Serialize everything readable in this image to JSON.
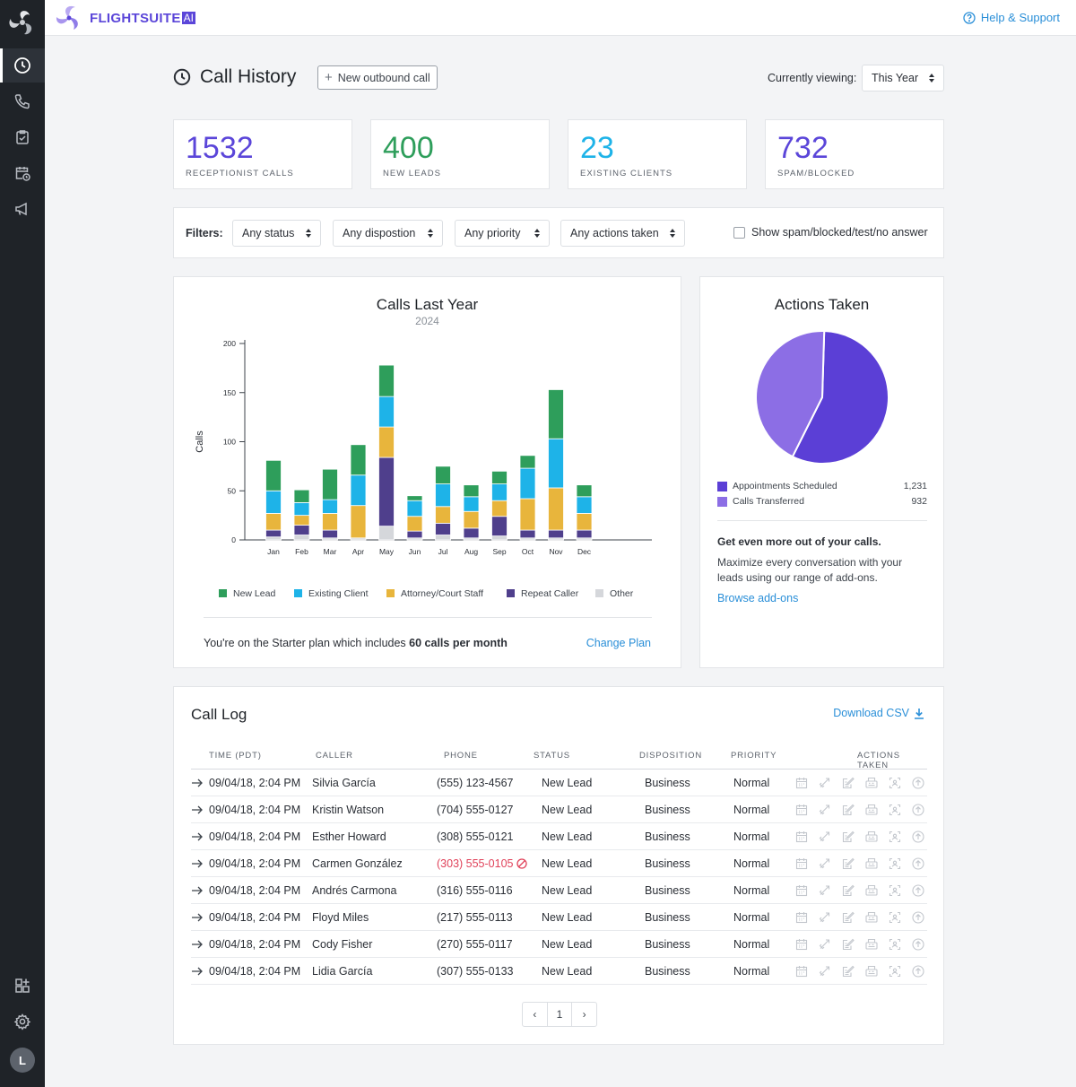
{
  "brand": {
    "name": "FLIGHTSUITE",
    "suffix": "AI"
  },
  "topbar": {
    "help_label": "Help & Support"
  },
  "sidebar": {
    "items": [
      {
        "name": "call-history",
        "icon": "clock-icon",
        "active": true
      },
      {
        "name": "calls",
        "icon": "phone-icon",
        "active": false
      },
      {
        "name": "tasks",
        "icon": "clipboard-check-icon",
        "active": false
      },
      {
        "name": "calendar",
        "icon": "calendar-clock-icon",
        "active": false
      },
      {
        "name": "campaigns",
        "icon": "megaphone-icon",
        "active": false
      }
    ],
    "bottom": [
      {
        "name": "add-ons",
        "icon": "grid-plus-icon"
      },
      {
        "name": "settings",
        "icon": "gear-icon"
      }
    ],
    "avatar_initial": "L"
  },
  "header": {
    "title": "Call History",
    "new_call_label": "New outbound call",
    "viewing_label": "Currently viewing:",
    "viewing_value": "This Year"
  },
  "stats": [
    {
      "value": "1532",
      "label": "RECEPTIONIST CALLS",
      "color": "#5b46d9"
    },
    {
      "value": "400",
      "label": "NEW LEADS",
      "color": "#2e9e5b"
    },
    {
      "value": "23",
      "label": "EXISTING CLIENTS",
      "color": "#1eb3e8"
    },
    {
      "value": "732",
      "label": "SPAM/BLOCKED",
      "color": "#5b46d9"
    }
  ],
  "filters": {
    "label": "Filters:",
    "status": "Any status",
    "disposition": "Any dispostion",
    "priority": "Any priority",
    "actions": "Any actions taken",
    "spam_label": "Show spam/blocked/test/no answer"
  },
  "chart_data": {
    "type": "bar",
    "stacked": true,
    "title": "Calls Last Year",
    "subtitle": "2024",
    "ylabel": "Calls",
    "ylim": [
      0,
      200
    ],
    "yticks": [
      0,
      50,
      100,
      150,
      200
    ],
    "categories": [
      "Jan",
      "Feb",
      "Mar",
      "Apr",
      "May",
      "Jun",
      "Jul",
      "Aug",
      "Sep",
      "Oct",
      "Nov",
      "Dec"
    ],
    "series": [
      {
        "name": "Other",
        "color": "#d5d7db",
        "values": [
          3,
          5,
          2,
          2,
          14,
          2,
          5,
          2,
          4,
          2,
          2,
          2
        ]
      },
      {
        "name": "Repeat Caller",
        "color": "#4f3f8c",
        "values": [
          7,
          10,
          8,
          0,
          70,
          7,
          12,
          10,
          20,
          8,
          8,
          8
        ]
      },
      {
        "name": "Attorney/Court Staff",
        "color": "#e8b53c",
        "values": [
          17,
          10,
          17,
          33,
          31,
          15,
          17,
          17,
          16,
          32,
          43,
          17
        ]
      },
      {
        "name": "Existing Client",
        "color": "#1eb3e8",
        "values": [
          23,
          13,
          14,
          31,
          31,
          16,
          23,
          15,
          17,
          31,
          50,
          17
        ]
      },
      {
        "name": "New Lead",
        "color": "#2e9e5b",
        "values": [
          31,
          13,
          31,
          31,
          32,
          5,
          18,
          12,
          13,
          13,
          50,
          12
        ]
      }
    ],
    "legend_order": [
      "New Lead",
      "Existing Client",
      "Attorney/Court Staff",
      "Repeat Caller",
      "Other"
    ]
  },
  "plan": {
    "text_prefix": "You're on the Starter plan which includes",
    "text_bold": "60 calls per month",
    "change_label": "Change Plan"
  },
  "actions": {
    "title": "Actions Taken",
    "items": [
      {
        "name": "Appointments Scheduled",
        "value": "1,231",
        "raw": 1231,
        "color": "#5b3fd6"
      },
      {
        "name": "Calls Transferred",
        "value": "932",
        "raw": 932,
        "color": "#8c6ee5"
      }
    ],
    "upsell_title": "Get even more out of your calls.",
    "upsell_body": "Maximize every conversation with your leads using our range of add-ons.",
    "browse_label": "Browse add-ons"
  },
  "call_log": {
    "title": "Call Log",
    "download_label": "Download CSV",
    "columns": [
      "TIME (PDT)",
      "CALLER",
      "PHONE",
      "STATUS",
      "DISPOSITION",
      "PRIORITY",
      "ACTIONS TAKEN"
    ],
    "rows": [
      {
        "time": "09/04/18, 2:04 PM",
        "caller": "Silvia García",
        "phone": "(555) 123-4567",
        "status": "New Lead",
        "disposition": "Business",
        "priority": "Normal",
        "blocked": false
      },
      {
        "time": "09/04/18, 2:04 PM",
        "caller": "Kristin Watson",
        "phone": "(704) 555-0127",
        "status": "New Lead",
        "disposition": "Business",
        "priority": "Normal",
        "blocked": false
      },
      {
        "time": "09/04/18, 2:04 PM",
        "caller": "Esther Howard",
        "phone": "(308) 555-0121",
        "status": "New Lead",
        "disposition": "Business",
        "priority": "Normal",
        "blocked": false
      },
      {
        "time": "09/04/18, 2:04 PM",
        "caller": "Carmen González",
        "phone": "(303) 555-0105",
        "status": "New Lead",
        "disposition": "Business",
        "priority": "Normal",
        "blocked": true
      },
      {
        "time": "09/04/18, 2:04 PM",
        "caller": "Andrés Carmona",
        "phone": "(316) 555-0116",
        "status": "New Lead",
        "disposition": "Business",
        "priority": "Normal",
        "blocked": false
      },
      {
        "time": "09/04/18, 2:04 PM",
        "caller": "Floyd Miles",
        "phone": "(217) 555-0113",
        "status": "New Lead",
        "disposition": "Business",
        "priority": "Normal",
        "blocked": false
      },
      {
        "time": "09/04/18, 2:04 PM",
        "caller": "Cody Fisher",
        "phone": "(270) 555-0117",
        "status": "New Lead",
        "disposition": "Business",
        "priority": "Normal",
        "blocked": false
      },
      {
        "time": "09/04/18, 2:04 PM",
        "caller": "Lidia García",
        "phone": "(307) 555-0133",
        "status": "New Lead",
        "disposition": "Business",
        "priority": "Normal",
        "blocked": false
      }
    ],
    "action_icons": [
      "calendar-icon",
      "transfer-icon",
      "note-edit-icon",
      "fax-icon",
      "scan-icon",
      "upload-icon"
    ],
    "pagination": {
      "prev": "‹",
      "page": "1",
      "next": "›"
    }
  }
}
